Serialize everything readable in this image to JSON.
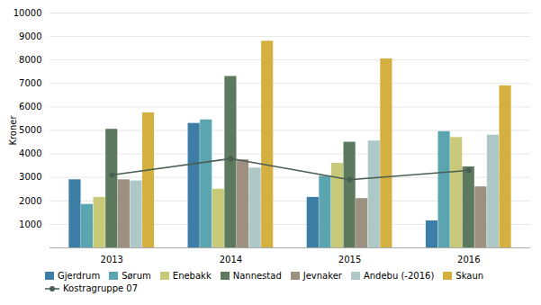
{
  "chart_data": {
    "type": "bar",
    "categories": [
      "2013",
      "2014",
      "2015",
      "2016"
    ],
    "series": [
      {
        "name": "Gjerdrum",
        "color": "#3d7ea6",
        "values": [
          2900,
          5300,
          2150,
          1150
        ]
      },
      {
        "name": "Sørum",
        "color": "#5aa5b0",
        "values": [
          1850,
          5450,
          3050,
          4950
        ]
      },
      {
        "name": "Enebakk",
        "color": "#c9c97a",
        "values": [
          2150,
          2500,
          3600,
          4700
        ]
      },
      {
        "name": "Nannestad",
        "color": "#5d7a5e",
        "values": [
          5050,
          7300,
          4500,
          3450
        ]
      },
      {
        "name": "Jevnaker",
        "color": "#9e9080",
        "values": [
          2900,
          3750,
          2100,
          2600
        ]
      },
      {
        "name": "Andebu (-2016)",
        "color": "#aec8c8",
        "values": [
          2850,
          3400,
          4550,
          4800
        ]
      },
      {
        "name": "Skaun",
        "color": "#d4b040",
        "values": [
          5750,
          8800,
          8050,
          6900
        ]
      },
      {
        "name": "Kostragruppe 07",
        "type": "line",
        "color": "#4a5e52",
        "marker": "circle",
        "line_style": "solid",
        "values": [
          3100,
          3800,
          2900,
          3300
        ]
      }
    ],
    "ylabel": "Kroner",
    "ylim": [
      0,
      10000
    ],
    "yticks": [
      1000,
      2000,
      3000,
      4000,
      5000,
      6000,
      7000,
      8000,
      9000,
      10000
    ],
    "grid": true,
    "legend": "bottom"
  }
}
